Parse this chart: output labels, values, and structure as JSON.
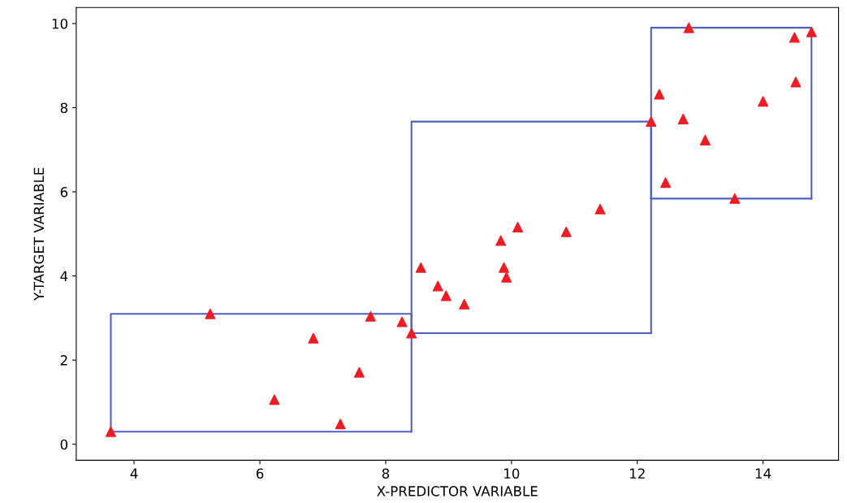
{
  "chart_data": {
    "type": "scatter",
    "xlabel": "X-PREDICTOR VARIABLE",
    "ylabel": "Y-TARGET VARIABLE",
    "xlim": [
      3.08,
      15.2
    ],
    "ylim": [
      -0.38,
      10.38
    ],
    "xticks": [
      4,
      6,
      8,
      10,
      12,
      14
    ],
    "yticks": [
      0,
      2,
      4,
      6,
      8,
      10
    ],
    "grid": false,
    "legend": false,
    "marker": "triangle",
    "series": [
      {
        "color": "#ee1c24",
        "x": [
          3.63,
          5.21,
          6.23,
          6.85,
          7.28,
          7.58,
          7.76,
          8.26,
          8.41,
          8.56,
          8.83,
          8.96,
          9.25,
          9.83,
          9.88,
          9.92,
          10.1,
          10.87,
          11.41,
          12.22,
          12.35,
          12.45,
          12.73,
          12.82,
          13.08,
          13.55,
          14.0,
          14.5,
          14.52,
          14.77
        ],
        "values": [
          0.3,
          3.1,
          1.06,
          2.52,
          0.48,
          1.71,
          3.04,
          2.91,
          2.64,
          4.2,
          3.76,
          3.53,
          3.33,
          4.84,
          4.2,
          3.97,
          5.16,
          5.05,
          5.59,
          7.67,
          8.32,
          6.22,
          7.73,
          9.9,
          7.23,
          5.84,
          8.15,
          9.67,
          8.61,
          9.8
        ]
      },
      {
        "type": "line",
        "color": "#5060c0",
        "line_style": "solid",
        "marker": "none",
        "x": [
          3.63,
          3.63,
          8.41,
          8.41
        ],
        "values": [
          0.3,
          3.1,
          3.1,
          0.3
        ]
      },
      {
        "type": "line",
        "color": "#5060c0",
        "line_style": "solid",
        "marker": "none",
        "x": [
          3.63,
          8.41
        ],
        "values": [
          0.3,
          0.3
        ]
      },
      {
        "type": "line",
        "color": "#5060c0",
        "line_style": "solid",
        "marker": "none",
        "x": [
          8.41,
          8.41,
          12.22,
          12.22
        ],
        "values": [
          2.64,
          7.67,
          7.67,
          2.64
        ]
      },
      {
        "type": "line",
        "color": "#5060c0",
        "line_style": "solid",
        "marker": "none",
        "x": [
          8.41,
          12.22
        ],
        "values": [
          2.64,
          2.64
        ]
      },
      {
        "type": "line",
        "color": "#5060c0",
        "line_style": "solid",
        "marker": "none",
        "x": [
          12.22,
          12.22,
          14.77,
          14.77
        ],
        "values": [
          5.84,
          9.9,
          9.9,
          5.84
        ]
      },
      {
        "type": "line",
        "color": "#5060c0",
        "line_style": "solid",
        "marker": "none",
        "x": [
          12.22,
          14.77
        ],
        "values": [
          5.84,
          5.84
        ]
      }
    ]
  }
}
